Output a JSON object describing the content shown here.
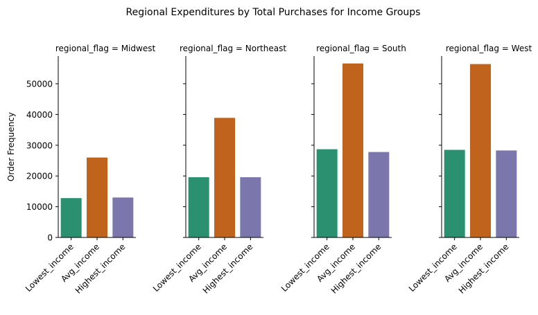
{
  "chart_data": {
    "type": "bar",
    "title": "Regional Expenditures by Total Purchases for Income Groups",
    "ylabel": "Order Frequency",
    "xlabel": "",
    "ylim": [
      0,
      59000
    ],
    "yticks": [
      0,
      10000,
      20000,
      30000,
      40000,
      50000
    ],
    "categories": [
      "Lowest_income",
      "Avg_income",
      "Highest_income"
    ],
    "colors": [
      "#2a9070",
      "#c0631d",
      "#7b77ad"
    ],
    "grid": false,
    "legend": "none",
    "facets": [
      {
        "title": "regional_flag = Midwest",
        "values": [
          12800,
          26000,
          13000
        ]
      },
      {
        "title": "regional_flag = Northeast",
        "values": [
          19600,
          38900,
          19600
        ]
      },
      {
        "title": "regional_flag = South",
        "values": [
          28700,
          56600,
          27800
        ]
      },
      {
        "title": "regional_flag = West",
        "values": [
          28500,
          56400,
          28300
        ]
      }
    ]
  }
}
